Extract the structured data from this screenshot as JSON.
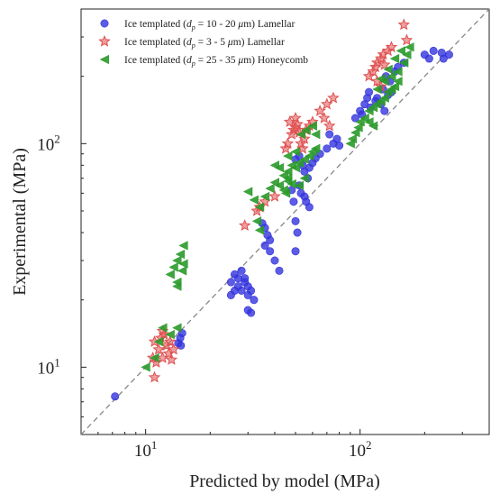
{
  "chart_data": {
    "type": "scatter",
    "xlabel": "Predicted by model (MPa)",
    "ylabel": "Experimental (MPa)",
    "xscale": "log",
    "yscale": "log",
    "xlim": [
      5,
      400
    ],
    "ylim": [
      5,
      400
    ],
    "x_ticks": [
      {
        "value": 10,
        "base": "10",
        "exp": "1"
      },
      {
        "value": 100,
        "base": "10",
        "exp": "2"
      }
    ],
    "y_ticks": [
      {
        "value": 10,
        "base": "10",
        "exp": "1"
      },
      {
        "value": 100,
        "base": "10",
        "exp": "2"
      }
    ],
    "reference_line": {
      "style": "dashed",
      "color": "#888888",
      "relation": "y = x"
    },
    "legend_position": "top-left",
    "series": [
      {
        "name": "Ice templated (d_p = 10 - 20 μm) Lamellar",
        "legend": {
          "pre": "Ice templated (",
          "sym": "d",
          "sub": "p",
          "post": " = 10 - 20 ",
          "mu": "μ",
          "unit": "m) Lamellar"
        },
        "marker": "circle",
        "color": "#3333dd",
        "points": [
          [
            7.2,
            7.4
          ],
          [
            14.5,
            13.5
          ],
          [
            14.8,
            14.2
          ],
          [
            14.2,
            12.8
          ],
          [
            14.6,
            12.5
          ],
          [
            25,
            24
          ],
          [
            26,
            26
          ],
          [
            27,
            25
          ],
          [
            26,
            22
          ],
          [
            28,
            27
          ],
          [
            25,
            21
          ],
          [
            29,
            24
          ],
          [
            30,
            23
          ],
          [
            31,
            22
          ],
          [
            30,
            21
          ],
          [
            32,
            20
          ],
          [
            30,
            18
          ],
          [
            31,
            17.5
          ],
          [
            29,
            25
          ],
          [
            28,
            22
          ],
          [
            27,
            23
          ],
          [
            35,
            44
          ],
          [
            36,
            42
          ],
          [
            37,
            39
          ],
          [
            38,
            37
          ],
          [
            38,
            33
          ],
          [
            36,
            35
          ],
          [
            40,
            30
          ],
          [
            42,
            27
          ],
          [
            48,
            62
          ],
          [
            49,
            55
          ],
          [
            50,
            45
          ],
          [
            51,
            40
          ],
          [
            50,
            33
          ],
          [
            52,
            65
          ],
          [
            53,
            60
          ],
          [
            55,
            58
          ],
          [
            56,
            55
          ],
          [
            58,
            52
          ],
          [
            57,
            70
          ],
          [
            55,
            75
          ],
          [
            50,
            85
          ],
          [
            52,
            88
          ],
          [
            54,
            80
          ],
          [
            58,
            78
          ],
          [
            60,
            82
          ],
          [
            62,
            86
          ],
          [
            65,
            90
          ],
          [
            70,
            95
          ],
          [
            75,
            100
          ],
          [
            78,
            105
          ],
          [
            72,
            110
          ],
          [
            80,
            98
          ],
          [
            95,
            130
          ],
          [
            100,
            140
          ],
          [
            105,
            150
          ],
          [
            102,
            135
          ],
          [
            108,
            160
          ],
          [
            110,
            170
          ],
          [
            112,
            145
          ],
          [
            118,
            155
          ],
          [
            120,
            160
          ],
          [
            125,
            150
          ],
          [
            130,
            140
          ],
          [
            128,
            175
          ],
          [
            135,
            165
          ],
          [
            140,
            170
          ],
          [
            138,
            190
          ],
          [
            132,
            200
          ],
          [
            145,
            210
          ],
          [
            150,
            220
          ],
          [
            160,
            230
          ],
          [
            200,
            250
          ],
          [
            210,
            240
          ],
          [
            220,
            260
          ],
          [
            240,
            255
          ],
          [
            245,
            240
          ],
          [
            260,
            250
          ]
        ]
      },
      {
        "name": "Ice templated (d_p = 3 - 5 μm) Lamellar",
        "legend": {
          "pre": "Ice templated (",
          "sym": "d",
          "sub": "p",
          "post": " = 3 - 5 ",
          "mu": "μ",
          "unit": "m) Lamellar"
        },
        "marker": "star",
        "color": "#e05050",
        "points": [
          [
            11,
            9
          ],
          [
            10.8,
            11
          ],
          [
            11.2,
            10.5
          ],
          [
            11.5,
            12
          ],
          [
            12,
            11
          ],
          [
            12.5,
            12.5
          ],
          [
            11.8,
            13.5
          ],
          [
            12.2,
            14
          ],
          [
            13,
            13
          ],
          [
            13.5,
            12
          ],
          [
            12.8,
            11.5
          ],
          [
            13.2,
            10.8
          ],
          [
            11,
            13
          ],
          [
            12,
            14.5
          ],
          [
            29,
            43
          ],
          [
            33,
            50
          ],
          [
            34,
            52
          ],
          [
            36,
            55
          ],
          [
            40,
            58
          ],
          [
            45,
            95
          ],
          [
            46,
            100
          ],
          [
            48,
            110
          ],
          [
            49,
            115
          ],
          [
            50,
            118
          ],
          [
            51,
            122
          ],
          [
            52,
            112
          ],
          [
            53,
            100
          ],
          [
            54,
            95
          ],
          [
            55,
            105
          ],
          [
            56,
            115
          ],
          [
            58,
            120
          ],
          [
            60,
            125
          ],
          [
            50,
            130
          ],
          [
            47,
            125
          ],
          [
            65,
            140
          ],
          [
            70,
            150
          ],
          [
            75,
            160
          ],
          [
            68,
            130
          ],
          [
            72,
            120
          ],
          [
            110,
            200
          ],
          [
            115,
            210
          ],
          [
            118,
            220
          ],
          [
            120,
            230
          ],
          [
            125,
            240
          ],
          [
            128,
            250
          ],
          [
            130,
            225
          ],
          [
            135,
            260
          ],
          [
            140,
            270
          ],
          [
            120,
            190
          ],
          [
            125,
            180
          ],
          [
            160,
            340
          ],
          [
            165,
            290
          ]
        ]
      },
      {
        "name": "Ice templated (d_p = 25 - 35 μm) Honeycomb",
        "legend": {
          "pre": "Ice templated (",
          "sym": "d",
          "sub": "p",
          "post": " = 25 - 35 ",
          "mu": "μ",
          "unit": "m) Honeycomb"
        },
        "marker": "triangle-left",
        "color": "#2a9a2a",
        "points": [
          [
            10,
            10
          ],
          [
            11,
            11
          ],
          [
            11.5,
            13
          ],
          [
            12,
            15
          ],
          [
            13,
            14
          ],
          [
            14,
            15
          ],
          [
            13,
            26
          ],
          [
            13.5,
            28
          ],
          [
            14,
            30
          ],
          [
            14.5,
            32
          ],
          [
            15,
            35
          ],
          [
            14,
            24
          ],
          [
            14.8,
            27
          ],
          [
            14,
            23
          ],
          [
            15,
            29
          ],
          [
            30,
            61
          ],
          [
            32,
            56
          ],
          [
            33,
            45
          ],
          [
            34,
            41
          ],
          [
            34,
            52
          ],
          [
            36,
            58
          ],
          [
            38,
            63
          ],
          [
            40,
            67
          ],
          [
            42,
            65
          ],
          [
            44,
            62
          ],
          [
            45,
            60
          ],
          [
            46,
            70
          ],
          [
            46,
            75
          ],
          [
            48,
            80
          ],
          [
            50,
            78
          ],
          [
            52,
            82
          ],
          [
            55,
            85
          ],
          [
            58,
            88
          ],
          [
            60,
            92
          ],
          [
            62,
            95
          ],
          [
            55,
            70
          ],
          [
            52,
            65
          ],
          [
            48,
            66
          ],
          [
            46,
            68
          ],
          [
            44,
            72
          ],
          [
            42,
            78
          ],
          [
            40,
            80
          ],
          [
            46,
            88
          ],
          [
            50,
            92
          ],
          [
            53,
            110
          ],
          [
            56,
            115
          ],
          [
            60,
            120
          ],
          [
            62,
            110
          ],
          [
            90,
            100
          ],
          [
            92,
            105
          ],
          [
            95,
            112
          ],
          [
            98,
            118
          ],
          [
            100,
            125
          ],
          [
            105,
            130
          ],
          [
            110,
            140
          ],
          [
            115,
            145
          ],
          [
            120,
            150
          ],
          [
            125,
            155
          ],
          [
            130,
            160
          ],
          [
            135,
            170
          ],
          [
            140,
            175
          ],
          [
            145,
            180
          ],
          [
            150,
            190
          ],
          [
            110,
            125
          ],
          [
            115,
            120
          ],
          [
            120,
            175
          ],
          [
            130,
            190
          ],
          [
            140,
            200
          ],
          [
            150,
            210
          ],
          [
            160,
            230
          ],
          [
            165,
            250
          ],
          [
            170,
            270
          ],
          [
            155,
            260
          ],
          [
            145,
            240
          ],
          [
            135,
            215
          ],
          [
            125,
            195
          ]
        ]
      }
    ]
  }
}
